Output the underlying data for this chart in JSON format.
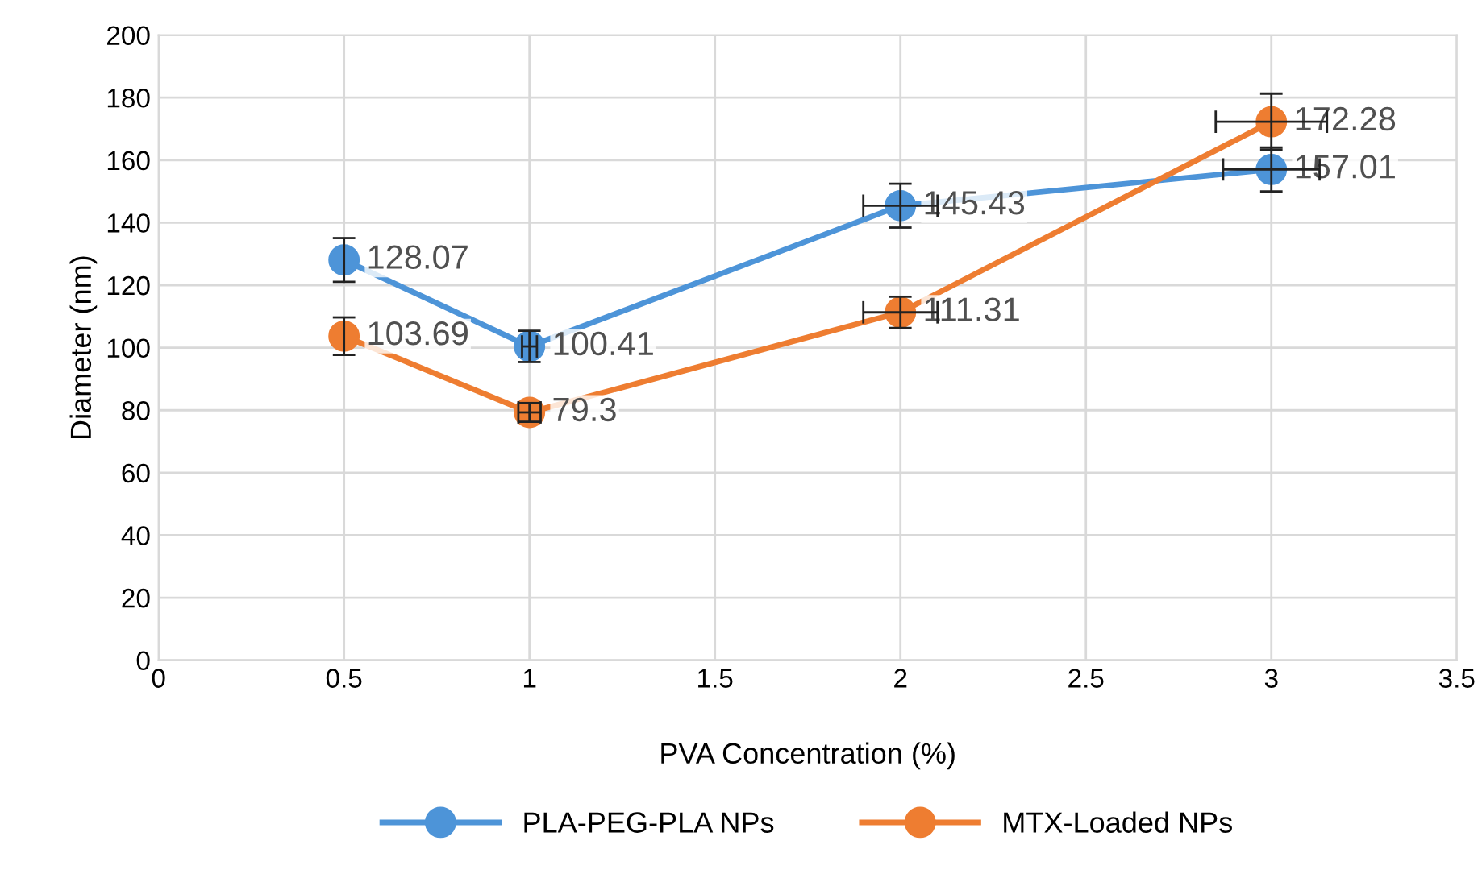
{
  "chart_data": {
    "type": "line",
    "xlabel": "PVA Concentration (%)",
    "ylabel": "Diameter (nm)",
    "x": [
      0.5,
      1,
      2,
      3
    ],
    "series": [
      {
        "name": "PLA-PEG-PLA NPs",
        "color": "#4d94d8",
        "values": [
          128.07,
          100.41,
          145.43,
          157.01
        ],
        "errors": [
          7,
          5,
          7,
          7
        ],
        "xerrors": [
          null,
          0.02,
          0.1,
          0.13
        ]
      },
      {
        "name": "MTX-Loaded NPs",
        "color": "#ee7d31",
        "values": [
          103.69,
          79.3,
          111.31,
          172.28
        ],
        "errors": [
          6,
          3,
          5,
          9
        ],
        "xerrors": [
          null,
          0.03,
          0.1,
          0.15
        ]
      }
    ],
    "xlim": [
      0,
      3.5
    ],
    "xticks": [
      0,
      0.5,
      1,
      1.5,
      2,
      2.5,
      3,
      3.5
    ],
    "ylim": [
      0,
      200
    ],
    "yticks": [
      0,
      20,
      40,
      60,
      80,
      100,
      120,
      140,
      160,
      180,
      200
    ],
    "grid": true,
    "legend": "bottom",
    "marker": "circle",
    "line_style": "solid",
    "data_labels": true
  }
}
